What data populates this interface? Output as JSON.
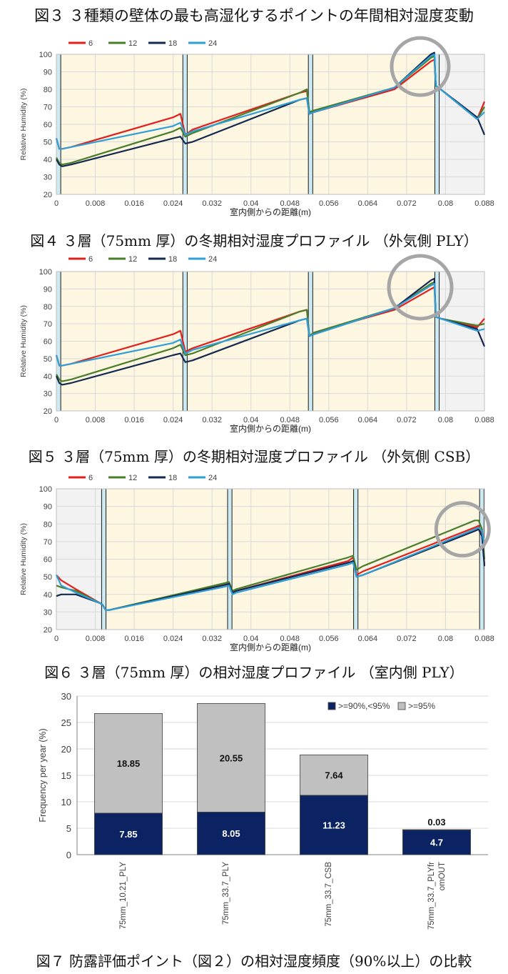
{
  "captions": {
    "fig3": "図３ ３種類の壁体の最も高湿化するポイントの年間相対湿度変動",
    "fig4": "図４ ３層（75mm 厚）の冬期相対湿度プロファイル （外気側 PLY）",
    "fig5": "図５ ３層（75mm 厚）の冬期相対湿度プロファイル （外気側 CSB）",
    "fig6": "図６ ３層（75mm 厚）の相対湿度プロファイル （室内側 PLY）",
    "fig7": "図７ 防露評価ポイント（図２）の相対湿度頻度（90%以上）の比較"
  },
  "colors": {
    "s6": "#e0201c",
    "s12": "#4a7d2a",
    "s18": "#14294f",
    "s24": "#2f9fd6",
    "fill_warm": "#fdf6e1",
    "fill_gray": "#f2f2f2",
    "board": "#cde9f2",
    "circle": "#a6a6a6",
    "bar_low": "#0b2362",
    "bar_high": "#c0c0c0"
  },
  "chart_data": [
    {
      "id": "fig4",
      "type": "line",
      "title": "",
      "legend": [
        "6",
        "12",
        "18",
        "24"
      ],
      "xlabel": "室内側からの距離(m)",
      "ylabel": "Relative Humidity (%)",
      "xlim": [
        0,
        0.088
      ],
      "ylim": [
        20,
        100
      ],
      "xticks": [
        "0",
        "0.008",
        "0.016",
        "0.024",
        "0.032",
        "0.04",
        "0.048",
        "0.056",
        "0.064",
        "0.072",
        "0.08",
        "0.088"
      ],
      "yticks": [
        "20",
        "30",
        "40",
        "50",
        "60",
        "70",
        "80",
        "90",
        "100"
      ],
      "series": [
        {
          "name": "6",
          "x": [
            0,
            0.0006,
            0.0012,
            0.003,
            0.024,
            0.0255,
            0.0265,
            0.028,
            0.05,
            0.0515,
            0.052,
            0.053,
            0.0695,
            0.077,
            0.0777,
            0.078,
            0.079,
            0.0865,
            0.088
          ],
          "y": [
            52,
            46,
            46,
            47,
            64,
            66,
            54,
            57,
            78,
            79,
            67,
            67,
            80,
            96,
            97,
            82,
            80,
            63,
            73
          ]
        },
        {
          "name": "12",
          "x": [
            0,
            0.0006,
            0.0012,
            0.003,
            0.024,
            0.0255,
            0.0265,
            0.028,
            0.05,
            0.0515,
            0.052,
            0.053,
            0.0695,
            0.077,
            0.0777,
            0.078,
            0.079,
            0.0865,
            0.088
          ],
          "y": [
            41,
            38,
            37,
            38,
            56,
            58,
            53,
            55,
            78,
            80,
            67,
            68,
            81,
            98,
            99,
            82,
            80,
            63,
            70
          ]
        },
        {
          "name": "18",
          "x": [
            0,
            0.0006,
            0.0012,
            0.003,
            0.024,
            0.0255,
            0.0265,
            0.028,
            0.05,
            0.0515,
            0.052,
            0.053,
            0.0695,
            0.077,
            0.0777,
            0.078,
            0.079,
            0.0865,
            0.088
          ],
          "y": [
            40,
            37,
            36,
            37,
            52,
            53,
            49,
            50,
            74,
            75,
            66,
            67,
            81,
            100,
            101,
            82,
            80,
            64,
            54
          ]
        },
        {
          "name": "24",
          "x": [
            0,
            0.0006,
            0.0012,
            0.003,
            0.024,
            0.0255,
            0.0265,
            0.028,
            0.05,
            0.0515,
            0.052,
            0.053,
            0.0695,
            0.077,
            0.0777,
            0.078,
            0.079,
            0.0865,
            0.088
          ],
          "y": [
            52,
            46,
            46,
            47,
            59,
            61,
            54,
            56,
            74,
            75,
            66,
            67,
            81,
            99,
            100,
            82,
            80,
            63,
            67
          ]
        }
      ],
      "insulation_boards_m": [
        [
          0,
          0.0009
        ],
        [
          0.026,
          0.0269
        ],
        [
          0.0518,
          0.0527
        ],
        [
          0.0778,
          0.0787
        ]
      ],
      "shaded_regions_m": {
        "warm": [
          [
            0.0009,
            0.026
          ],
          [
            0.0269,
            0.0518
          ],
          [
            0.0527,
            0.0778
          ]
        ],
        "gray": [
          [
            0.0787,
            0.088
          ]
        ]
      },
      "highlight_circle": {
        "x": 0.0748,
        "y": 93
      }
    },
    {
      "id": "fig5",
      "type": "line",
      "title": "",
      "legend": [
        "6",
        "12",
        "18",
        "24"
      ],
      "xlabel": "室内側からの距離(m)",
      "ylabel": "Relative Humidity (%)",
      "xlim": [
        0,
        0.088
      ],
      "ylim": [
        20,
        100
      ],
      "xticks": [
        "0",
        "0.008",
        "0.016",
        "0.024",
        "0.032",
        "0.04",
        "0.048",
        "0.056",
        "0.064",
        "0.072",
        "0.08",
        "0.088"
      ],
      "yticks": [
        "20",
        "30",
        "40",
        "50",
        "60",
        "70",
        "80",
        "90",
        "100"
      ],
      "series": [
        {
          "name": "6",
          "x": [
            0,
            0.0006,
            0.0012,
            0.003,
            0.024,
            0.0255,
            0.0265,
            0.028,
            0.05,
            0.0515,
            0.052,
            0.053,
            0.0695,
            0.077,
            0.0777,
            0.078,
            0.079,
            0.0865,
            0.088
          ],
          "y": [
            52,
            46,
            46,
            47,
            64,
            66,
            54,
            56,
            77,
            78,
            63,
            65,
            78,
            90,
            91,
            74,
            73,
            68,
            73
          ]
        },
        {
          "name": "12",
          "x": [
            0,
            0.0006,
            0.0012,
            0.003,
            0.024,
            0.0255,
            0.0265,
            0.028,
            0.05,
            0.0515,
            0.052,
            0.053,
            0.0695,
            0.077,
            0.0777,
            0.078,
            0.079,
            0.0865,
            0.088
          ],
          "y": [
            41,
            38,
            37,
            38,
            56,
            58,
            52,
            53,
            77,
            78,
            63,
            65,
            79,
            93,
            94,
            74,
            73,
            69,
            70
          ]
        },
        {
          "name": "18",
          "x": [
            0,
            0.0006,
            0.0012,
            0.003,
            0.024,
            0.0255,
            0.0265,
            0.028,
            0.05,
            0.0515,
            0.052,
            0.053,
            0.0695,
            0.077,
            0.0777,
            0.078,
            0.079,
            0.0865,
            0.088
          ],
          "y": [
            40,
            36,
            35,
            36,
            52,
            53,
            48,
            49,
            72,
            73,
            63,
            64,
            79,
            95,
            96,
            74,
            73,
            67,
            57
          ]
        },
        {
          "name": "24",
          "x": [
            0,
            0.0006,
            0.0012,
            0.003,
            0.024,
            0.0255,
            0.0265,
            0.028,
            0.05,
            0.0515,
            0.052,
            0.053,
            0.0695,
            0.077,
            0.0777,
            0.078,
            0.079,
            0.0865,
            0.088
          ],
          "y": [
            52,
            46,
            46,
            47,
            59,
            61,
            53,
            55,
            72,
            73,
            63,
            64,
            79,
            92,
            93,
            74,
            73,
            66,
            67
          ]
        }
      ],
      "insulation_boards_m": [
        [
          0,
          0.0009
        ],
        [
          0.026,
          0.0269
        ],
        [
          0.0518,
          0.0527
        ],
        [
          0.0778,
          0.0787
        ]
      ],
      "shaded_regions_m": {
        "warm": [
          [
            0.0009,
            0.026
          ],
          [
            0.0269,
            0.0518
          ],
          [
            0.0527,
            0.0778
          ]
        ],
        "gray": [
          [
            0.0787,
            0.088
          ]
        ]
      },
      "highlight_circle": {
        "x": 0.0748,
        "y": 91
      }
    },
    {
      "id": "fig6",
      "type": "line",
      "title": "",
      "legend": [
        "6",
        "12",
        "18",
        "24"
      ],
      "xlabel": "室内側からの距離(m)",
      "ylabel": "Relative Humidity (%)",
      "xlim": [
        0,
        0.088
      ],
      "ylim": [
        20,
        100
      ],
      "xticks": [
        "0",
        "0.008",
        "0.016",
        "0.024",
        "0.032",
        "0.04",
        "0.048",
        "0.056",
        "0.064",
        "0.072",
        "0.08",
        "0.088"
      ],
      "yticks": [
        "20",
        "30",
        "40",
        "50",
        "60",
        "70",
        "80",
        "90",
        "100"
      ],
      "series": [
        {
          "name": "6",
          "x": [
            0,
            0.001,
            0.004,
            0.009,
            0.0095,
            0.0102,
            0.0107,
            0.034,
            0.0355,
            0.0362,
            0.037,
            0.06,
            0.061,
            0.0617,
            0.063,
            0.086,
            0.0868,
            0.0875,
            0.088
          ],
          "y": [
            51,
            48,
            43,
            35,
            34,
            31,
            31,
            45,
            46,
            41,
            42,
            59,
            61,
            51,
            53,
            78,
            79,
            74,
            57
          ]
        },
        {
          "name": "12",
          "x": [
            0,
            0.001,
            0.004,
            0.009,
            0.0095,
            0.0102,
            0.0107,
            0.034,
            0.0355,
            0.0362,
            0.037,
            0.06,
            0.061,
            0.0617,
            0.063,
            0.086,
            0.0868,
            0.0875,
            0.088
          ],
          "y": [
            45,
            44,
            42,
            35,
            34,
            31,
            31,
            46,
            47,
            42,
            43,
            61,
            62,
            54,
            56,
            82,
            82,
            77,
            60
          ]
        },
        {
          "name": "18",
          "x": [
            0,
            0.001,
            0.004,
            0.009,
            0.0095,
            0.0102,
            0.0107,
            0.034,
            0.0355,
            0.0362,
            0.037,
            0.06,
            0.061,
            0.0617,
            0.063,
            0.086,
            0.0868,
            0.0875,
            0.088
          ],
          "y": [
            39,
            40,
            40,
            35,
            34,
            31,
            31,
            45,
            46,
            41,
            42,
            58,
            59,
            50,
            51,
            76,
            77,
            73,
            56
          ]
        },
        {
          "name": "24",
          "x": [
            0,
            0.001,
            0.004,
            0.009,
            0.0095,
            0.0102,
            0.0107,
            0.034,
            0.0355,
            0.0362,
            0.037,
            0.06,
            0.061,
            0.0617,
            0.063,
            0.086,
            0.0868,
            0.0875,
            0.088
          ],
          "y": [
            51,
            45,
            41,
            35,
            34,
            31,
            31,
            44,
            45,
            40,
            41,
            57,
            58,
            50,
            51,
            77,
            78,
            76,
            67
          ]
        }
      ],
      "insulation_boards_m": [
        [
          0.0093,
          0.0102
        ],
        [
          0.0352,
          0.0361
        ],
        [
          0.0611,
          0.062
        ],
        [
          0.087,
          0.0879
        ]
      ],
      "shaded_regions_m": {
        "gray": [
          [
            0,
            0.0093
          ]
        ],
        "warm": [
          [
            0.0102,
            0.0352
          ],
          [
            0.0361,
            0.0611
          ],
          [
            0.062,
            0.087
          ]
        ]
      },
      "highlight_circle": {
        "x": 0.0835,
        "y": 77
      }
    },
    {
      "id": "fig7",
      "type": "bar",
      "stacked": true,
      "title": "",
      "ylabel": "Frequency per year (%)",
      "ylim": [
        0,
        30
      ],
      "yticks": [
        "0",
        "5",
        "10",
        "15",
        "20",
        "25",
        "30"
      ],
      "categories": [
        "75mm_10.21_PLY",
        "75mm_33.7_PLY",
        "75mm_33.7_CSB",
        "75mm_33.7_PLYfromOUT"
      ],
      "category_labels": [
        [
          "75mm_10.21_PLY"
        ],
        [
          "75mm_33.7_PLY"
        ],
        [
          "75mm_33.7_CSB"
        ],
        [
          "75mm_33.7_PLYfr",
          "omOUT"
        ]
      ],
      "series": [
        {
          "name": ">=90%,<95%",
          "values": [
            7.85,
            8.05,
            11.23,
            4.7
          ],
          "labels": [
            "7.85",
            "8.05",
            "11.23",
            "4.7"
          ]
        },
        {
          "name": ">=95%",
          "values": [
            18.85,
            20.55,
            7.64,
            0.03
          ],
          "labels": [
            "18.85",
            "20.55",
            "7.64",
            "0.03"
          ]
        }
      ],
      "legend_position": "top-right"
    }
  ]
}
